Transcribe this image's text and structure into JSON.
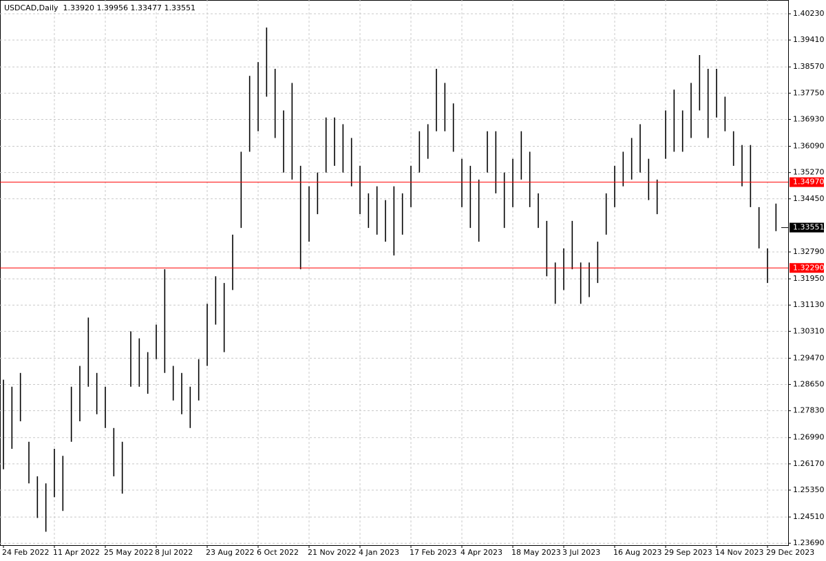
{
  "chart_data": {
    "type": "hlbar",
    "title": "USDCAD,Daily  1.33920 1.39956 1.33477 1.33551",
    "categories": [
      "24 Feb 2022",
      null,
      null,
      null,
      null,
      null,
      "11 Apr 2022",
      null,
      null,
      null,
      null,
      null,
      "25 May 2022",
      null,
      null,
      null,
      null,
      null,
      "8 Jul 2022",
      null,
      null,
      null,
      null,
      null,
      "23 Aug 2022",
      null,
      null,
      null,
      null,
      null,
      "6 Oct 2022",
      null,
      null,
      null,
      null,
      null,
      "21 Nov 2022",
      null,
      null,
      null,
      null,
      null,
      "4 Jan 2023",
      null,
      null,
      null,
      null,
      null,
      "17 Feb 2023",
      null,
      null,
      null,
      null,
      null,
      "4 Apr 2023",
      null,
      null,
      null,
      null,
      null,
      "18 May 2023",
      null,
      null,
      null,
      null,
      null,
      "3 Jul 2023",
      null,
      null,
      null,
      null,
      null,
      "16 Aug 2023",
      null,
      null,
      null,
      null,
      null,
      "29 Sep 2023",
      null,
      null,
      null,
      null,
      null,
      "14 Nov 2023",
      null,
      null,
      null,
      null,
      null,
      "29 Dec 2023",
      null
    ],
    "high": [
      1.288,
      1.2858,
      1.2901,
      1.2686,
      1.2578,
      1.2556,
      1.2664,
      1.2642,
      1.2858,
      1.2923,
      1.3074,
      1.2901,
      1.2858,
      1.2729,
      1.2686,
      1.3031,
      1.3009,
      1.2966,
      1.3052,
      1.3225,
      1.2923,
      1.2901,
      1.2858,
      1.2944,
      1.3117,
      1.3203,
      1.3182,
      1.3333,
      1.3592,
      1.3829,
      1.3872,
      1.398,
      1.3851,
      1.3721,
      1.3807,
      1.3548,
      1.3484,
      1.3527,
      1.3699,
      1.3699,
      1.3678,
      1.3635,
      1.3548,
      1.3462,
      1.3484,
      1.3441,
      1.3484,
      1.3462,
      1.3548,
      1.3656,
      1.3678,
      1.3851,
      1.3807,
      1.3743,
      1.357,
      1.3548,
      1.3505,
      1.3656,
      1.3656,
      1.3527,
      1.357,
      1.3656,
      1.3592,
      1.3462,
      1.3376,
      1.3246,
      1.329,
      1.3376,
      1.3246,
      1.3246,
      1.3311,
      1.3462,
      1.3548,
      1.3592,
      1.3635,
      1.3678,
      1.357,
      1.3505,
      1.3721,
      1.3786,
      1.3721,
      1.3807,
      1.3894,
      1.3851,
      1.3851,
      1.3764,
      1.3656,
      1.3613,
      1.3613,
      1.3419,
      1.329,
      1.343
    ],
    "low": [
      1.26,
      1.2664,
      1.275,
      1.2556,
      1.2448,
      1.2405,
      1.2513,
      1.247,
      1.2686,
      1.275,
      1.2858,
      1.2772,
      1.2729,
      1.2578,
      1.2524,
      1.2858,
      1.2858,
      1.2836,
      1.2944,
      1.2901,
      1.2815,
      1.2772,
      1.2729,
      1.2815,
      1.2923,
      1.3052,
      1.2966,
      1.316,
      1.3354,
      1.3592,
      1.3656,
      1.3764,
      1.3635,
      1.3527,
      1.3505,
      1.3225,
      1.3311,
      1.3397,
      1.3527,
      1.3548,
      1.3527,
      1.3484,
      1.3397,
      1.3354,
      1.3333,
      1.3311,
      1.3268,
      1.3333,
      1.3419,
      1.3527,
      1.357,
      1.3656,
      1.3656,
      1.3592,
      1.3419,
      1.3354,
      1.3311,
      1.3527,
      1.3462,
      1.3354,
      1.3419,
      1.3505,
      1.3419,
      1.3354,
      1.3203,
      1.3117,
      1.316,
      1.3225,
      1.3117,
      1.3138,
      1.3182,
      1.3333,
      1.3419,
      1.3484,
      1.3505,
      1.3527,
      1.3441,
      1.3397,
      1.357,
      1.3592,
      1.3592,
      1.3635,
      1.3721,
      1.3635,
      1.3699,
      1.3656,
      1.3548,
      1.3484,
      1.3419,
      1.329,
      1.3182,
      1.3344
    ],
    "color": "#000000",
    "ylim": [
      1.2363,
      1.4066
    ],
    "yticks": [
      {
        "value": 1.4023,
        "label": "1.40230"
      },
      {
        "value": 1.3941,
        "label": "1.39410"
      },
      {
        "value": 1.3857,
        "label": "1.38570"
      },
      {
        "value": 1.3775,
        "label": "1.37750"
      },
      {
        "value": 1.3693,
        "label": "1.36930"
      },
      {
        "value": 1.3609,
        "label": "1.36090"
      },
      {
        "value": 1.3527,
        "label": "1.35270"
      },
      {
        "value": 1.3445,
        "label": "1.34450"
      },
      {
        "value": 1.3279,
        "label": "1.32790"
      },
      {
        "value": 1.3195,
        "label": "1.31950"
      },
      {
        "value": 1.3113,
        "label": "1.31130"
      },
      {
        "value": 1.3031,
        "label": "1.30310"
      },
      {
        "value": 1.2947,
        "label": "1.29470"
      },
      {
        "value": 1.2865,
        "label": "1.28650"
      },
      {
        "value": 1.2783,
        "label": "1.27830"
      },
      {
        "value": 1.2699,
        "label": "1.26990"
      },
      {
        "value": 1.2617,
        "label": "1.26170"
      },
      {
        "value": 1.2535,
        "label": "1.25350"
      },
      {
        "value": 1.2451,
        "label": "1.24510"
      },
      {
        "value": 1.2369,
        "label": "1.23690"
      }
    ],
    "grid": true,
    "levels": [
      {
        "value": 1.3497,
        "label": "1.34970"
      },
      {
        "value": 1.3229,
        "label": "1.32290"
      }
    ],
    "level_color": "#ff0000",
    "current_price": {
      "value": 1.33551,
      "label": "1.33551"
    }
  }
}
